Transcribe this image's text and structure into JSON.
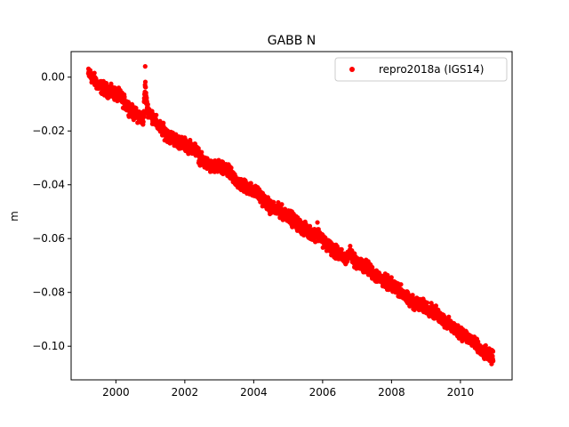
{
  "chart_data": {
    "type": "scatter",
    "title": "GABB N",
    "xlabel": "",
    "ylabel": "m",
    "xlim": [
      1998.7,
      2011.5
    ],
    "ylim": [
      -0.1125,
      0.0095
    ],
    "x_ticks": [
      2000,
      2002,
      2004,
      2006,
      2008,
      2010
    ],
    "x_tick_labels": [
      "2000",
      "2002",
      "2004",
      "2006",
      "2008",
      "2010"
    ],
    "y_ticks": [
      0.0,
      -0.02,
      -0.04,
      -0.06,
      -0.08,
      -0.1
    ],
    "y_tick_labels": [
      "0.00",
      "−0.02",
      "−0.04",
      "−0.06",
      "−0.08",
      "−0.10"
    ],
    "grid": false,
    "legend_position": "upper right",
    "series": [
      {
        "name": "repro2018a (IGS14)",
        "color": "#ff0000",
        "marker": "circle",
        "trend": {
          "start_year": 1999.2,
          "end_year": 2010.95,
          "start_value": -0.0005,
          "end_value": -0.1045,
          "scatter_amplitude": 0.0018
        },
        "points": [
          [
            1999.25,
            0.002
          ],
          [
            1999.5,
            -0.003
          ],
          [
            1999.8,
            -0.005
          ],
          [
            2000.1,
            -0.006
          ],
          [
            2000.3,
            -0.01
          ],
          [
            2000.5,
            -0.014
          ],
          [
            2000.8,
            -0.016
          ],
          [
            2000.85,
            0.004
          ],
          [
            2000.9,
            -0.009
          ],
          [
            2001.2,
            -0.017
          ],
          [
            2001.5,
            -0.022
          ],
          [
            2001.8,
            -0.024
          ],
          [
            2002.0,
            -0.025
          ],
          [
            2002.3,
            -0.026
          ],
          [
            2002.5,
            -0.032
          ],
          [
            2002.8,
            -0.034
          ],
          [
            2003.0,
            -0.033
          ],
          [
            2003.3,
            -0.035
          ],
          [
            2003.6,
            -0.04
          ],
          [
            2003.9,
            -0.041
          ],
          [
            2004.2,
            -0.044
          ],
          [
            2004.5,
            -0.049
          ],
          [
            2004.8,
            -0.05
          ],
          [
            2005.0,
            -0.051
          ],
          [
            2005.3,
            -0.055
          ],
          [
            2005.6,
            -0.058
          ],
          [
            2005.9,
            -0.058
          ],
          [
            2006.1,
            -0.062
          ],
          [
            2006.4,
            -0.066
          ],
          [
            2006.7,
            -0.068
          ],
          [
            2006.8,
            -0.064
          ],
          [
            2007.0,
            -0.069
          ],
          [
            2007.3,
            -0.07
          ],
          [
            2007.6,
            -0.074
          ],
          [
            2007.9,
            -0.076
          ],
          [
            2008.2,
            -0.078
          ],
          [
            2008.5,
            -0.083
          ],
          [
            2008.8,
            -0.084
          ],
          [
            2009.1,
            -0.085
          ],
          [
            2009.4,
            -0.088
          ],
          [
            2009.7,
            -0.092
          ],
          [
            2010.0,
            -0.094
          ],
          [
            2010.3,
            -0.097
          ],
          [
            2010.6,
            -0.102
          ],
          [
            2010.9,
            -0.104
          ]
        ]
      }
    ]
  }
}
